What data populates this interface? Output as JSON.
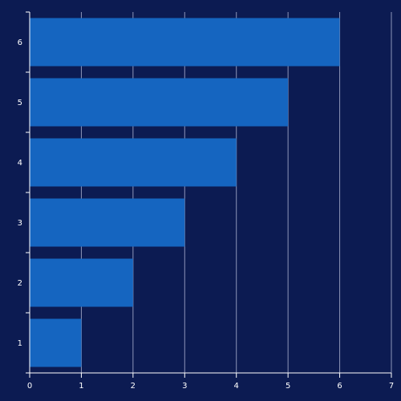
{
  "colors": {
    "background": "#0c1b52",
    "bar": "#1565c0",
    "grid": "#8d95b8",
    "axis": "#ffffff",
    "text": "#ffffff"
  },
  "chart_data": {
    "type": "bar",
    "orientation": "horizontal",
    "categories": [
      "1",
      "2",
      "3",
      "4",
      "5",
      "6"
    ],
    "values": [
      1,
      2,
      3,
      4,
      5,
      6
    ],
    "title": "",
    "xlabel": "",
    "ylabel": "",
    "xlim": [
      0,
      7
    ],
    "xticks": [
      "0",
      "1",
      "2",
      "3",
      "4",
      "5",
      "6",
      "7"
    ],
    "grid": "vertical",
    "legend": "none"
  }
}
